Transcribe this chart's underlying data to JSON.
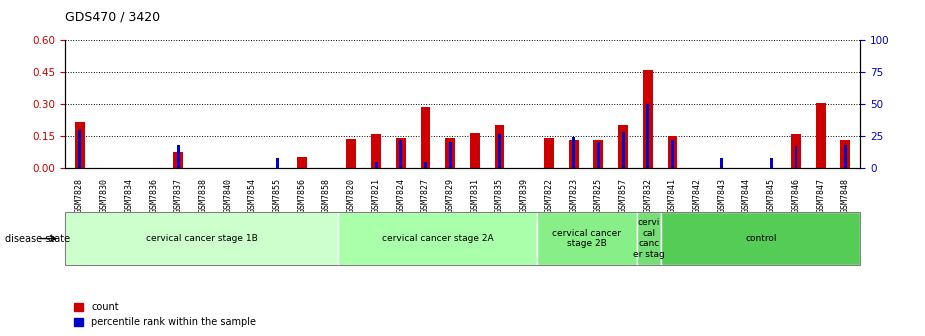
{
  "title": "GDS470 / 3420",
  "samples": [
    "GSM7828",
    "GSM7830",
    "GSM7834",
    "GSM7836",
    "GSM7837",
    "GSM7838",
    "GSM7840",
    "GSM7854",
    "GSM7855",
    "GSM7856",
    "GSM7858",
    "GSM7820",
    "GSM7821",
    "GSM7824",
    "GSM7827",
    "GSM7829",
    "GSM7831",
    "GSM7835",
    "GSM7839",
    "GSM7822",
    "GSM7823",
    "GSM7825",
    "GSM7857",
    "GSM7832",
    "GSM7841",
    "GSM7842",
    "GSM7843",
    "GSM7844",
    "GSM7845",
    "GSM7846",
    "GSM7847",
    "GSM7848"
  ],
  "count": [
    0.215,
    0.0,
    0.0,
    0.0,
    0.075,
    0.0,
    0.0,
    0.0,
    0.0,
    0.05,
    0.0,
    0.135,
    0.16,
    0.14,
    0.285,
    0.14,
    0.165,
    0.2,
    0.0,
    0.14,
    0.13,
    0.13,
    0.2,
    0.46,
    0.15,
    0.0,
    0.0,
    0.0,
    0.0,
    0.16,
    0.305,
    0.13
  ],
  "percentile": [
    30,
    0,
    0,
    0,
    18,
    0,
    0,
    0,
    8,
    0,
    0,
    0,
    5,
    22,
    5,
    20,
    0,
    27,
    0,
    0,
    24,
    20,
    28,
    50,
    22,
    0,
    8,
    0,
    8,
    17,
    0,
    18
  ],
  "groups": [
    {
      "label": "cervical cancer stage 1B",
      "start": 0,
      "end": 11,
      "color": "#ccffcc"
    },
    {
      "label": "cervical cancer stage 2A",
      "start": 11,
      "end": 19,
      "color": "#aaffaa"
    },
    {
      "label": "cervical cancer\nstage 2B",
      "start": 19,
      "end": 23,
      "color": "#88ee88"
    },
    {
      "label": "cervi\ncal\ncanc\ner stag",
      "start": 23,
      "end": 24,
      "color": "#77dd77"
    },
    {
      "label": "control",
      "start": 24,
      "end": 32,
      "color": "#55cc55"
    }
  ],
  "ylim_left": [
    0,
    0.6
  ],
  "ylim_right": [
    0,
    100
  ],
  "yticks_left": [
    0,
    0.15,
    0.3,
    0.45,
    0.6
  ],
  "yticks_right": [
    0,
    25,
    50,
    75,
    100
  ],
  "left_color": "#cc0000",
  "right_color": "#0000cc",
  "bar_width": 0.4,
  "blue_bar_width": 0.12,
  "background_color": "#ffffff"
}
